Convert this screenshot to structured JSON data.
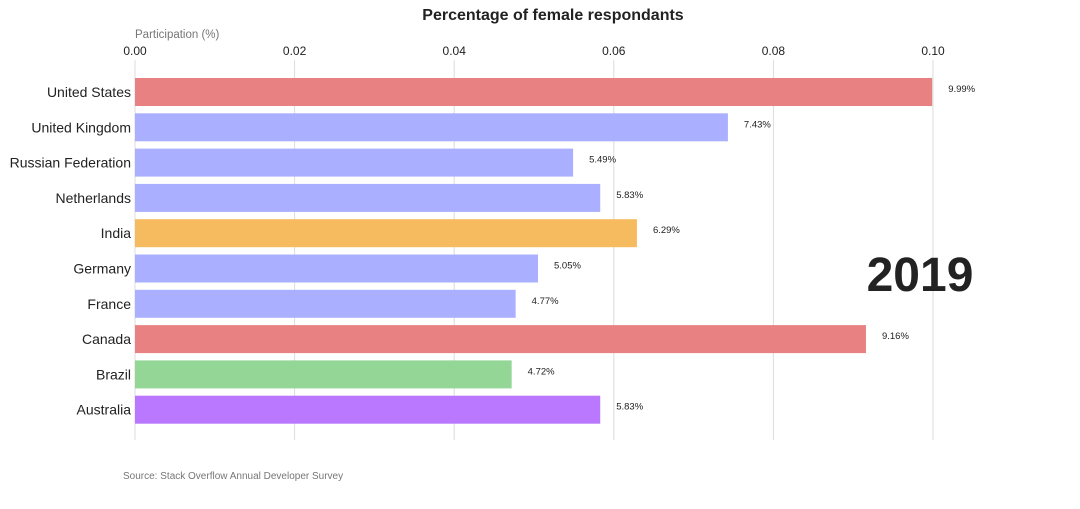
{
  "chart_data": {
    "type": "bar",
    "orientation": "horizontal",
    "title": "Percentage of female respondants",
    "xlabel": "Participation (%)",
    "x_axis_position": "top",
    "xlim": [
      0,
      0.1
    ],
    "xticks": [
      "0.00",
      "0.02",
      "0.04",
      "0.06",
      "0.08",
      "0.10"
    ],
    "grid": "vertical",
    "categories": [
      "United States",
      "United Kingdom",
      "Russian Federation",
      "Netherlands",
      "India",
      "Germany",
      "France",
      "Canada",
      "Brazil",
      "Australia"
    ],
    "values": [
      0.0999,
      0.0743,
      0.0549,
      0.0583,
      0.0629,
      0.0505,
      0.0477,
      0.0916,
      0.0472,
      0.0583
    ],
    "value_labels": [
      "9.99%",
      "7.43%",
      "5.49%",
      "5.83%",
      "6.29%",
      "5.05%",
      "4.77%",
      "9.16%",
      "4.72%",
      "5.83%"
    ],
    "colors": [
      "#e88282",
      "#aab0ff",
      "#aab0ff",
      "#aab0ff",
      "#f7bb5f",
      "#aab0ff",
      "#aab0ff",
      "#e88282",
      "#93d695",
      "#b978ff"
    ],
    "annotation": "2019",
    "source": "Source: Stack Overflow Annual Developer Survey"
  }
}
